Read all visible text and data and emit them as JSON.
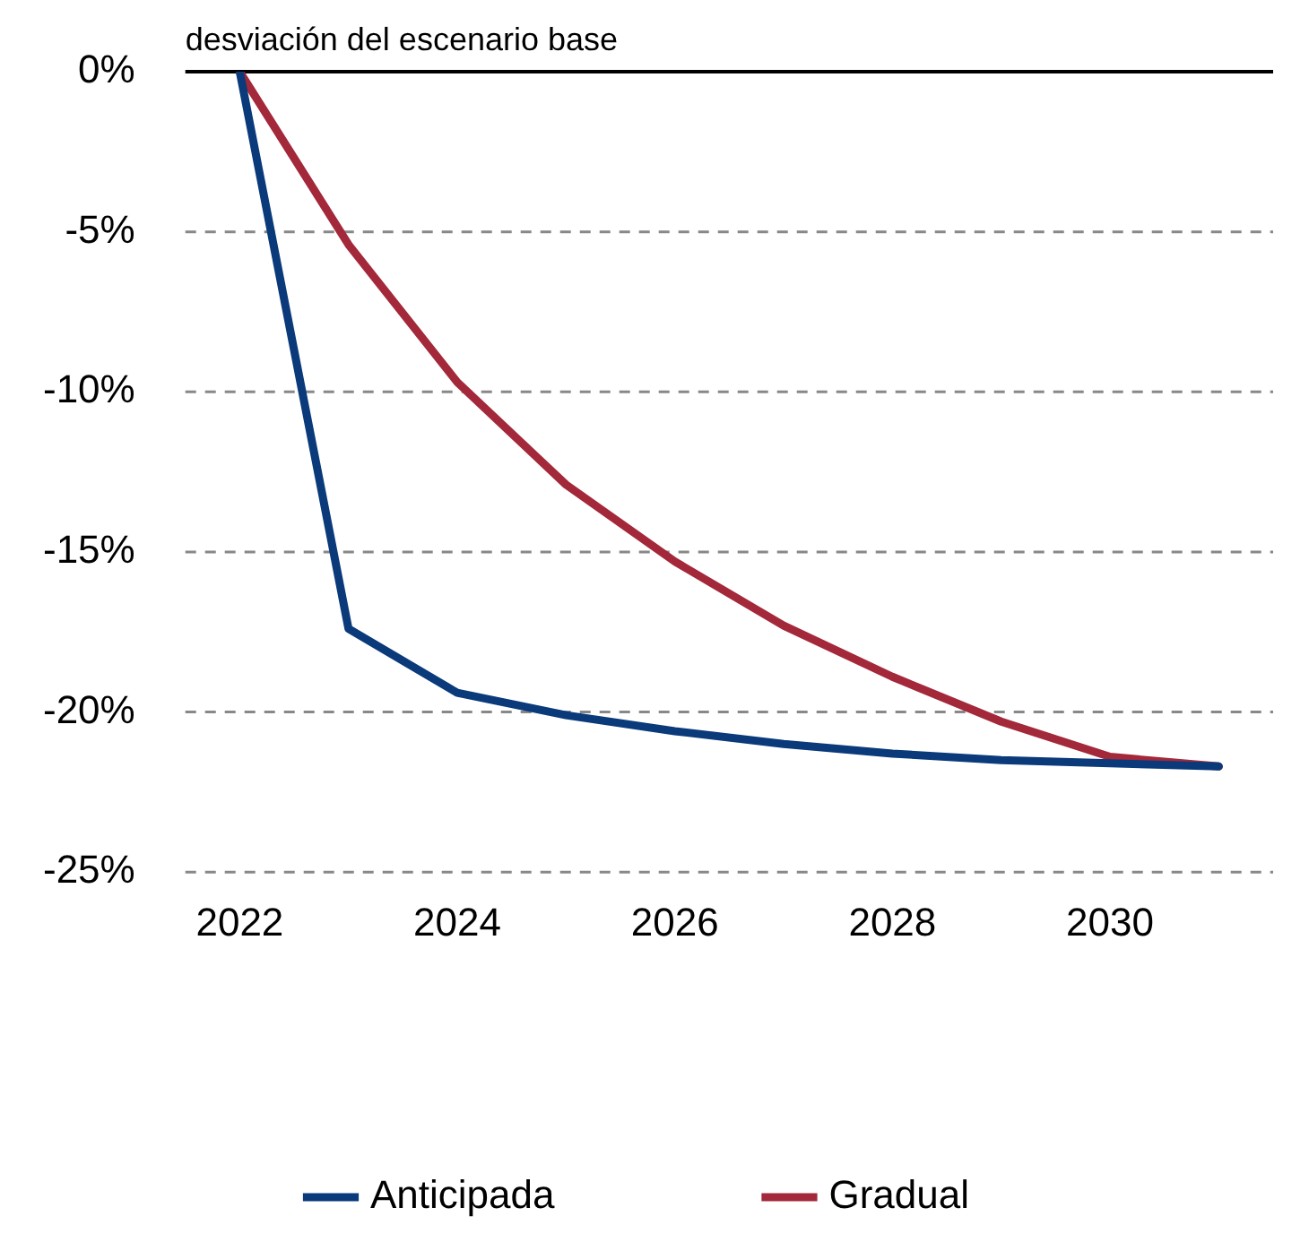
{
  "chart_data": {
    "type": "line",
    "ylabel": "desviación del escenario base",
    "x": [
      2022,
      2023,
      2024,
      2025,
      2026,
      2027,
      2028,
      2029,
      2030,
      2031
    ],
    "series": [
      {
        "name": "Anticipada",
        "color": "#0a3a7a",
        "values": [
          0,
          -17.4,
          -19.4,
          -20.1,
          -20.6,
          -21.0,
          -21.3,
          -21.5,
          -21.6,
          -21.7
        ]
      },
      {
        "name": "Gradual",
        "color": "#a3283a",
        "values": [
          0,
          -5.4,
          -9.7,
          -12.9,
          -15.3,
          -17.3,
          -18.9,
          -20.3,
          -21.4,
          -21.7
        ]
      }
    ],
    "xlim": [
      2021.5,
      2031.5
    ],
    "xticks": [
      2022,
      2024,
      2026,
      2028,
      2030
    ],
    "ylim": [
      -25,
      0
    ],
    "yticks": [
      {
        "value": 0,
        "label": "0%"
      },
      {
        "value": -5,
        "label": "-5%"
      },
      {
        "value": -10,
        "label": "-10%"
      },
      {
        "value": -15,
        "label": "-15%"
      },
      {
        "value": -20,
        "label": "-20%"
      },
      {
        "value": -25,
        "label": "-25%"
      }
    ],
    "grid": "y",
    "legend": "bottom",
    "marker": "none",
    "line_style": "solid"
  }
}
